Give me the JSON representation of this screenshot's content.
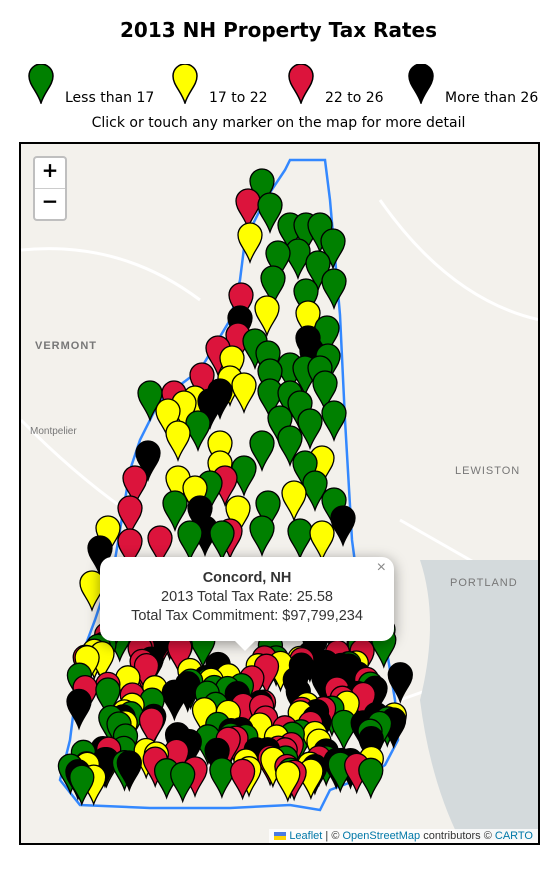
{
  "header": {
    "title": "2013 NH Property Tax Rates",
    "instruction": "Click or touch any marker on the map for more detail"
  },
  "legend": [
    {
      "label": "Less than 17",
      "color": "#008000"
    },
    {
      "label": "17 to 22",
      "color": "#ffff00"
    },
    {
      "label": "22 to 26",
      "color": "#dc143c"
    },
    {
      "label": "More than 26",
      "color": "#000000"
    }
  ],
  "map": {
    "zoom_in": "+",
    "zoom_out": "−",
    "labels": [
      "VERMONT",
      "Montpelier",
      "LEWISTON",
      "PORTLAND"
    ]
  },
  "popup": {
    "close": "×",
    "title": "Concord, NH",
    "rate_line": "2013 Total Tax Rate: 25.58",
    "commitment_line": "Total Tax Commitment: $97,799,234"
  },
  "attribution": {
    "leaflet": "Leaflet",
    "sep": " | © ",
    "osm": "OpenStreetMap",
    "mid": " contributors © ",
    "carto": "CARTO"
  }
}
